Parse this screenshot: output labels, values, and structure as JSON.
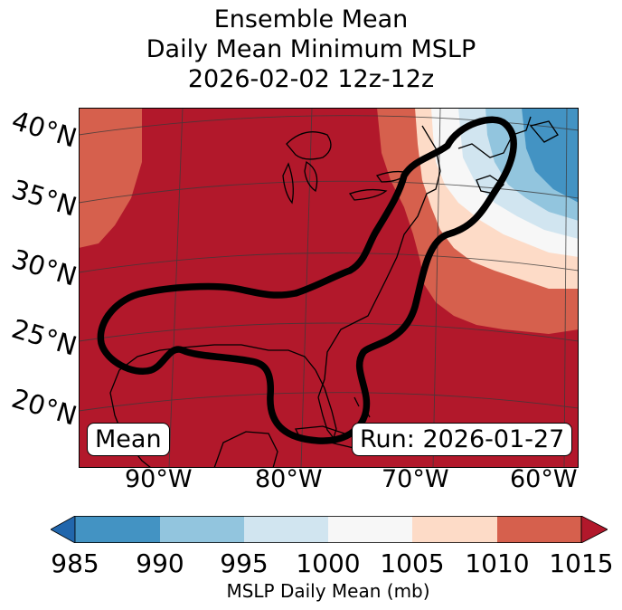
{
  "figure": {
    "title_line1": "Ensemble Mean",
    "title_line2": "Daily Mean Minimum MSLP",
    "title_line3": "2026-02-02 12z-12z"
  },
  "map": {
    "lat_labels": [
      "40°N",
      "35°N",
      "30°N",
      "25°N",
      "20°N"
    ],
    "lon_labels": [
      "90°W",
      "80°W",
      "70°W",
      "60°W"
    ],
    "mean_label": "Mean",
    "run_label": "Run: 2026-01-27",
    "region": "Eastern North America / Gulf of Mexico / Western Atlantic",
    "outline": "thick black contour enclosing Gulf of Mexico and US East Coast"
  },
  "colorbar": {
    "label": "MSLP Daily Mean (mb)",
    "ticks": [
      "985",
      "990",
      "995",
      "1000",
      "1005",
      "1010",
      "1015"
    ],
    "colors": [
      "#2166ac",
      "#4393c3",
      "#92c5de",
      "#d1e5f0",
      "#f7f7f7",
      "#fddbc7",
      "#d6604d",
      "#b2182b"
    ]
  }
}
